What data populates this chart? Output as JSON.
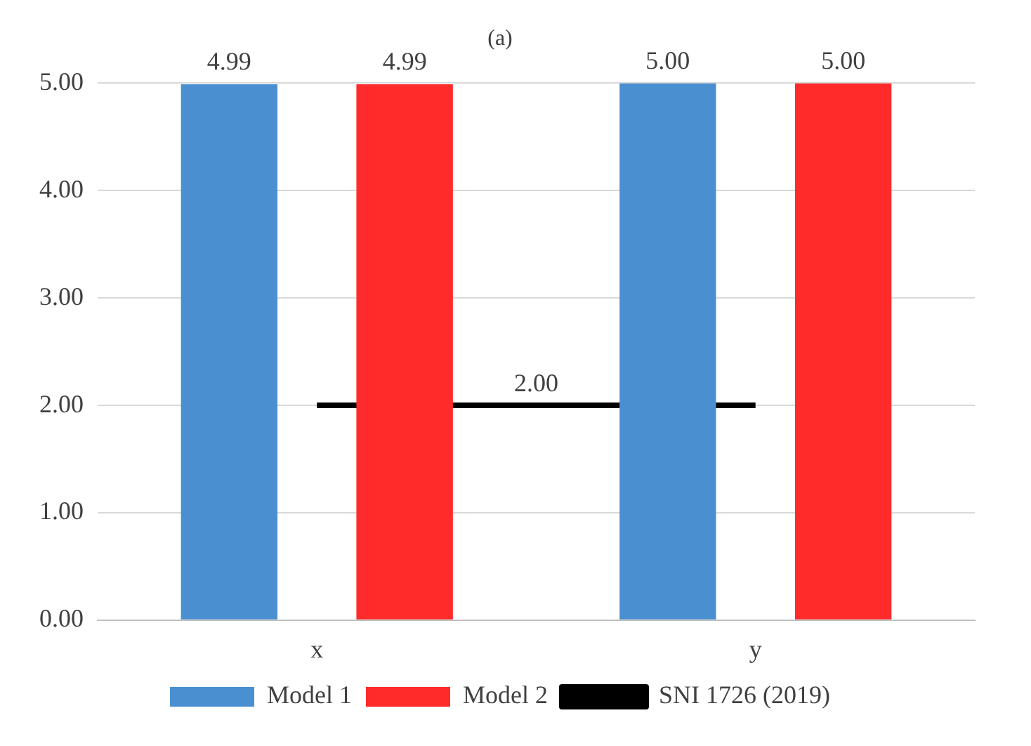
{
  "chart_data": {
    "type": "bar",
    "title": "(a)",
    "categories": [
      "x",
      "y"
    ],
    "series": [
      {
        "name": "Model 1",
        "color": "#4a90d0",
        "values": [
          4.99,
          5.0
        ],
        "value_labels": [
          "4.99",
          "5.00"
        ]
      },
      {
        "name": "Model 2",
        "color": "#ff2a2a",
        "values": [
          4.99,
          5.0
        ],
        "value_labels": [
          "4.99",
          "5.00"
        ]
      },
      {
        "name": "SNI 1726 (2019)",
        "type": "line",
        "color": "#000000",
        "values": [
          2.0,
          2.0
        ],
        "marker": "none"
      }
    ],
    "annotations": [
      {
        "text": "2.00",
        "y": 2.0
      }
    ],
    "ylim": [
      0,
      5
    ],
    "yticks": [
      {
        "value": 0,
        "label": "0.00"
      },
      {
        "value": 1,
        "label": "1.00"
      },
      {
        "value": 2,
        "label": "2.00"
      },
      {
        "value": 3,
        "label": "3.00"
      },
      {
        "value": 4,
        "label": "4.00"
      },
      {
        "value": 5,
        "label": "5.00"
      }
    ],
    "grid": "y",
    "legend": "bottom"
  }
}
